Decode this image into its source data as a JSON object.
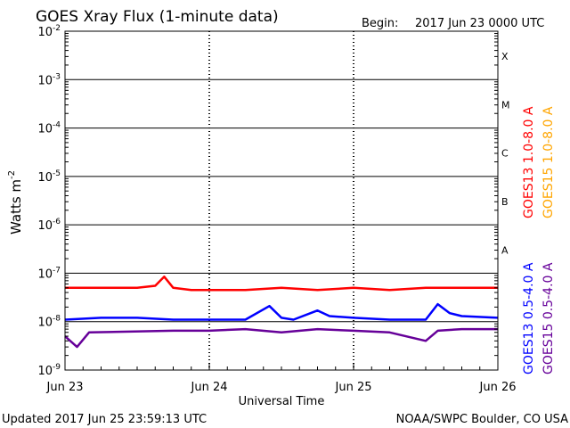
{
  "header": {
    "title": "GOES Xray Flux (1-minute data)",
    "begin_label": "Begin:",
    "begin_value": "2017 Jun 23 0000 UTC"
  },
  "footer": {
    "updated": "Updated 2017 Jun 25 23:59:13 UTC",
    "source": "NOAA/SWPC Boulder, CO USA"
  },
  "chart_data": {
    "type": "line",
    "title": "GOES Xray Flux (1-minute data)",
    "xlabel": "Universal Time",
    "ylabel_base": "Watts m",
    "ylabel_exp": "-2",
    "log_scale_y": true,
    "ylim": [
      1e-09,
      0.01
    ],
    "xlim": [
      "2017-06-23 00:00",
      "2017-06-26 00:00"
    ],
    "x_ticks": [
      "Jun 23",
      "Jun 24",
      "Jun 25",
      "Jun 26"
    ],
    "y_ticks": [
      {
        "value": 1e-09,
        "base": "10",
        "exp": "-9"
      },
      {
        "value": 1e-08,
        "base": "10",
        "exp": "-8"
      },
      {
        "value": 1e-07,
        "base": "10",
        "exp": "-7"
      },
      {
        "value": 1e-06,
        "base": "10",
        "exp": "-6"
      },
      {
        "value": 1e-05,
        "base": "10",
        "exp": "-5"
      },
      {
        "value": 0.0001,
        "base": "10",
        "exp": "-4"
      },
      {
        "value": 0.001,
        "base": "10",
        "exp": "-3"
      },
      {
        "value": 0.01,
        "base": "10",
        "exp": "-2"
      }
    ],
    "flare_classes": [
      {
        "label": "A",
        "value": 1e-07
      },
      {
        "label": "B",
        "value": 1e-06
      },
      {
        "label": "C",
        "value": 1e-05
      },
      {
        "label": "M",
        "value": 0.0001
      },
      {
        "label": "X",
        "value": 0.001
      }
    ],
    "grid": true,
    "legend_placement": "right",
    "series": [
      {
        "name": "GOES13 1.0-8.0 A",
        "color": "#ff0000",
        "x": [
          "2017-06-23 00:00",
          "2017-06-23 06:00",
          "2017-06-23 12:00",
          "2017-06-23 15:00",
          "2017-06-23 16:30",
          "2017-06-23 18:00",
          "2017-06-23 21:00",
          "2017-06-24 00:00",
          "2017-06-24 06:00",
          "2017-06-24 12:00",
          "2017-06-24 18:00",
          "2017-06-25 00:00",
          "2017-06-25 06:00",
          "2017-06-25 12:00",
          "2017-06-25 18:00",
          "2017-06-26 00:00"
        ],
        "values": [
          5e-08,
          5e-08,
          5e-08,
          5.5e-08,
          8.5e-08,
          5e-08,
          4.5e-08,
          4.5e-08,
          4.5e-08,
          5e-08,
          4.5e-08,
          5e-08,
          4.5e-08,
          5e-08,
          5e-08,
          5e-08
        ]
      },
      {
        "name": "GOES15 1.0-8.0 A",
        "color": "#ffa500",
        "x": [],
        "values": []
      },
      {
        "name": "GOES13 0.5-4.0 A",
        "color": "#0000ff",
        "x": [
          "2017-06-23 00:00",
          "2017-06-23 06:00",
          "2017-06-23 12:00",
          "2017-06-23 18:00",
          "2017-06-24 00:00",
          "2017-06-24 06:00",
          "2017-06-24 10:00",
          "2017-06-24 12:00",
          "2017-06-24 14:00",
          "2017-06-24 18:00",
          "2017-06-24 20:00",
          "2017-06-25 00:00",
          "2017-06-25 06:00",
          "2017-06-25 12:00",
          "2017-06-25 14:00",
          "2017-06-25 16:00",
          "2017-06-25 18:00",
          "2017-06-26 00:00"
        ],
        "values": [
          1.1e-08,
          1.2e-08,
          1.2e-08,
          1.1e-08,
          1.1e-08,
          1.1e-08,
          2.1e-08,
          1.2e-08,
          1.1e-08,
          1.7e-08,
          1.3e-08,
          1.2e-08,
          1.1e-08,
          1.1e-08,
          2.3e-08,
          1.5e-08,
          1.3e-08,
          1.2e-08
        ]
      },
      {
        "name": "GOES15 0.5-4.0 A",
        "color": "#660099",
        "x": [
          "2017-06-23 00:00",
          "2017-06-23 02:00",
          "2017-06-23 04:00",
          "2017-06-23 18:00",
          "2017-06-24 00:00",
          "2017-06-24 06:00",
          "2017-06-24 12:00",
          "2017-06-24 18:00",
          "2017-06-25 00:00",
          "2017-06-25 06:00",
          "2017-06-25 12:00",
          "2017-06-25 14:00",
          "2017-06-25 18:00",
          "2017-06-26 00:00"
        ],
        "values": [
          5e-09,
          3e-09,
          6e-09,
          6.5e-09,
          6.5e-09,
          7e-09,
          6e-09,
          7e-09,
          6.5e-09,
          6e-09,
          4e-09,
          6.5e-09,
          7e-09,
          7e-09
        ]
      }
    ]
  }
}
